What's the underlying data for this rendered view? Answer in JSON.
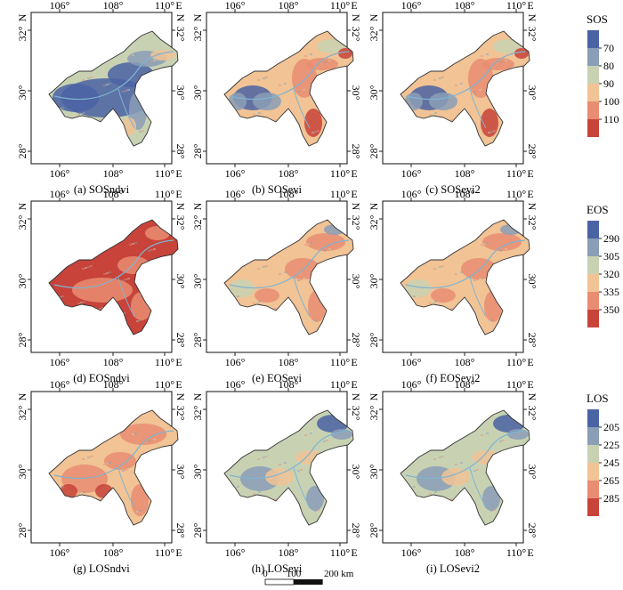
{
  "figure": {
    "axis_ticks": {
      "top": [
        "106°",
        "108°",
        "110°",
        "E"
      ],
      "bottom": [
        "106°",
        "108°",
        "110°",
        "E"
      ],
      "left": [
        "32°",
        "N",
        "30°",
        "28°"
      ],
      "right": [
        "32°",
        "N",
        "30°",
        "28°"
      ]
    },
    "panels": [
      {
        "caption": "(a) SOSndvi",
        "scheme": "sosndvi"
      },
      {
        "caption": "(b) SOSevi",
        "scheme": "sosevi"
      },
      {
        "caption": "(c) SOSevi2",
        "scheme": "sosevi"
      },
      {
        "caption": "(d) EOSndvi",
        "scheme": "eosndvi"
      },
      {
        "caption": "(e) EOSevi",
        "scheme": "eosevi"
      },
      {
        "caption": "(f) EOSevi2",
        "scheme": "eosevi"
      },
      {
        "caption": "(g) LOSndvi",
        "scheme": "losndvi"
      },
      {
        "caption": "(h) LOSevi",
        "scheme": "losevi"
      },
      {
        "caption": "(i) LOSevi2",
        "scheme": "losevi"
      }
    ],
    "legends": [
      {
        "title": "SOS",
        "ticks": [
          "70",
          "80",
          "90",
          "100",
          "110"
        ]
      },
      {
        "title": "EOS",
        "ticks": [
          "290",
          "305",
          "320",
          "335",
          "350"
        ]
      },
      {
        "title": "LOS",
        "ticks": [
          "205",
          "225",
          "245",
          "265",
          "285"
        ]
      }
    ],
    "legend_colors": [
      "#4a63a3",
      "#8a9eb6",
      "#c8d2b3",
      "#f1c395",
      "#e98d72",
      "#c8433a"
    ],
    "scale_bar": {
      "labels": [
        "0",
        "100",
        "200 km"
      ]
    },
    "colors": {
      "boundary": "#333333",
      "river": "#7fb3d1",
      "blue": "#4a63a3",
      "grey_blue": "#8a9eb6",
      "pale_green": "#c8d2b3",
      "tan": "#f1c395",
      "salmon": "#e98d72",
      "red": "#c8433a"
    }
  }
}
